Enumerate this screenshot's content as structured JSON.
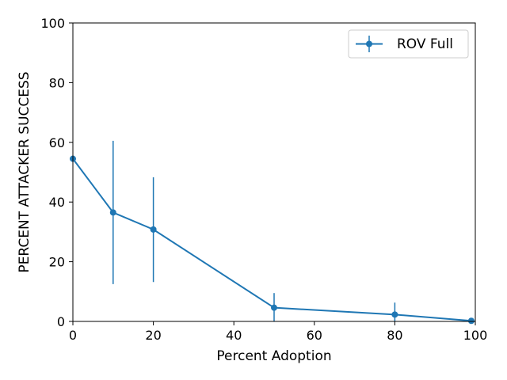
{
  "chart_data": {
    "type": "line",
    "title": "",
    "xlabel": "Percent Adoption",
    "ylabel": "PERCENT ATTACKER SUCCESS",
    "xlim": [
      0,
      100
    ],
    "ylim": [
      0,
      100
    ],
    "xticks": [
      0,
      20,
      40,
      60,
      80,
      100
    ],
    "yticks": [
      0,
      20,
      40,
      60,
      80,
      100
    ],
    "grid": false,
    "legend_position": "top-right",
    "series": [
      {
        "name": "ROV Full",
        "color": "#1f77b4",
        "marker": "circle",
        "x": [
          0,
          10,
          20,
          50,
          80,
          99
        ],
        "y": [
          54.5,
          36.5,
          30.8,
          4.6,
          2.3,
          0.2
        ],
        "err_low": [
          54.5,
          12.5,
          13.2,
          0.0,
          0.0,
          0.0
        ],
        "err_high": [
          54.5,
          60.5,
          48.3,
          9.5,
          6.3,
          0.4
        ]
      }
    ]
  }
}
